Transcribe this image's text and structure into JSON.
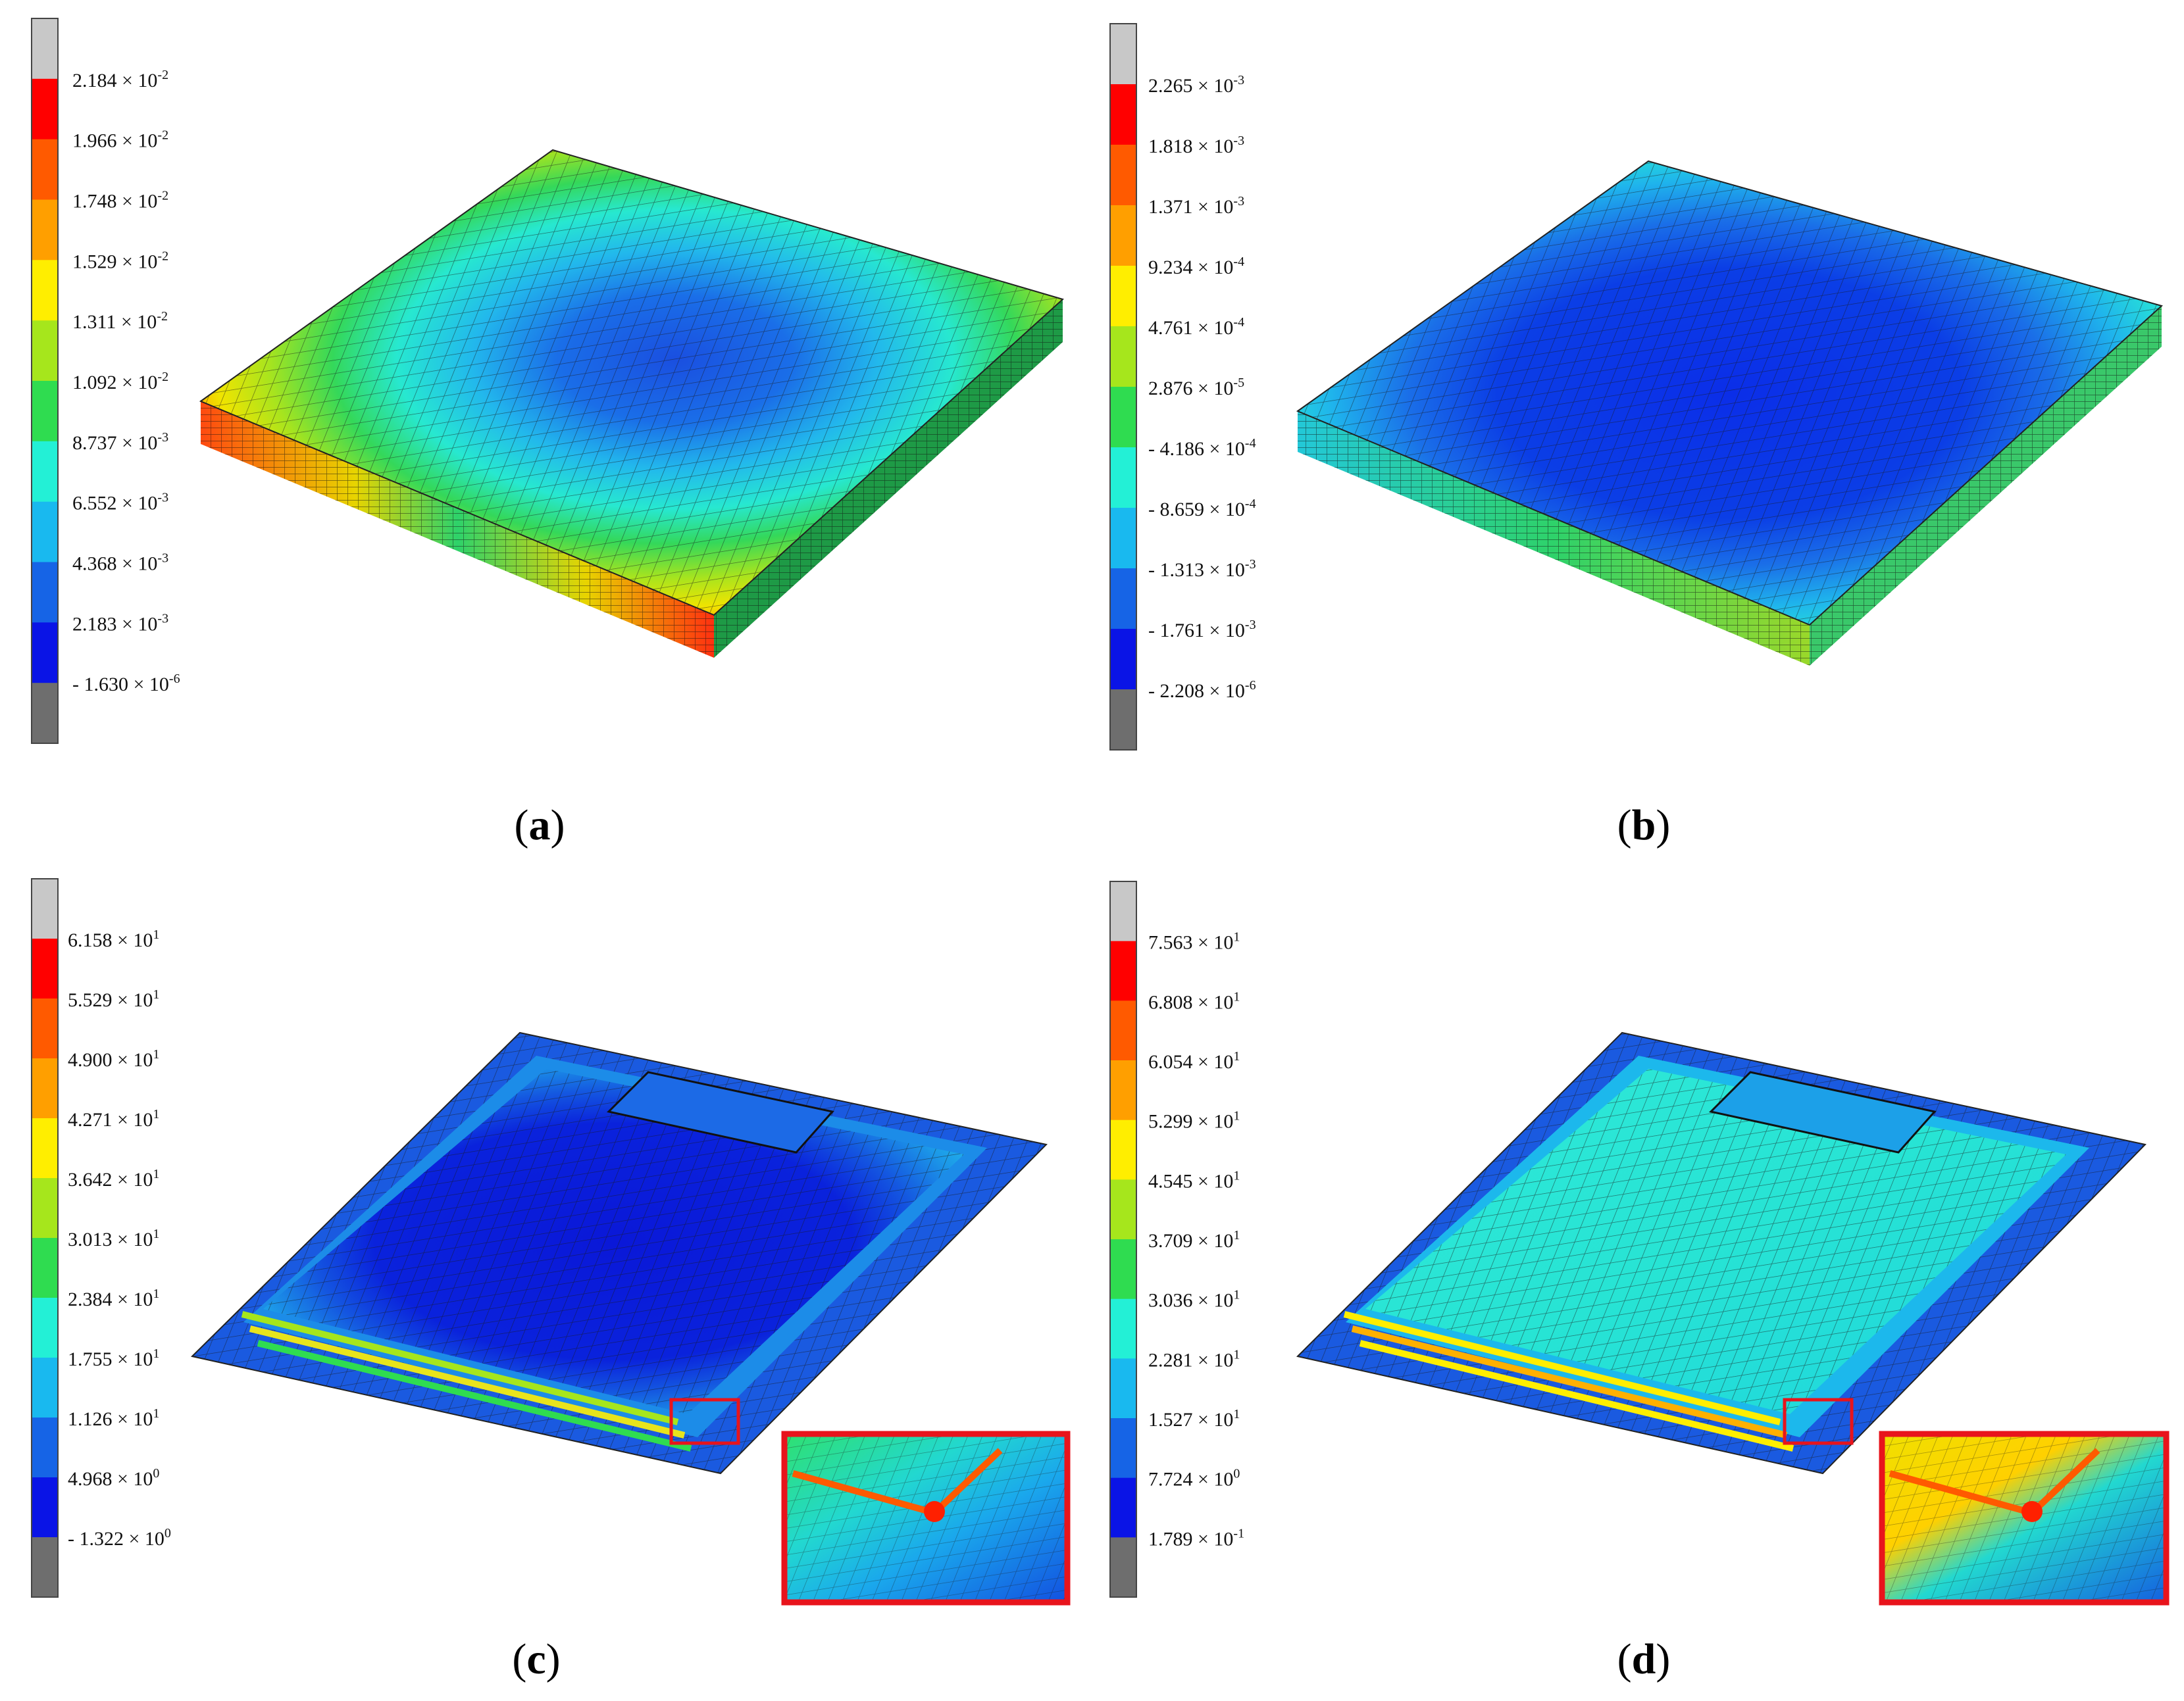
{
  "panels": [
    {
      "id": "a",
      "caption": "(a)",
      "letter": "a",
      "legend_labels": [
        {
          "mantissa": "2.184",
          "exp": "-2"
        },
        {
          "mantissa": "1.966",
          "exp": "-2"
        },
        {
          "mantissa": "1.748",
          "exp": "-2"
        },
        {
          "mantissa": "1.529",
          "exp": "-2"
        },
        {
          "mantissa": "1.311",
          "exp": "-2"
        },
        {
          "mantissa": "1.092",
          "exp": "-2"
        },
        {
          "mantissa": "8.737",
          "exp": "-3"
        },
        {
          "mantissa": "6.552",
          "exp": "-3"
        },
        {
          "mantissa": "4.368",
          "exp": "-3"
        },
        {
          "mantissa": "2.183",
          "exp": "-3"
        },
        {
          "mantissa": "- 1.630",
          "exp": "-6"
        }
      ],
      "inset": false
    },
    {
      "id": "b",
      "caption": "(b)",
      "letter": "b",
      "legend_labels": [
        {
          "mantissa": "2.265",
          "exp": "-3"
        },
        {
          "mantissa": "1.818",
          "exp": "-3"
        },
        {
          "mantissa": "1.371",
          "exp": "-3"
        },
        {
          "mantissa": "9.234",
          "exp": "-4"
        },
        {
          "mantissa": "4.761",
          "exp": "-4"
        },
        {
          "mantissa": "2.876",
          "exp": "-5"
        },
        {
          "mantissa": "- 4.186",
          "exp": "-4"
        },
        {
          "mantissa": "- 8.659",
          "exp": "-4"
        },
        {
          "mantissa": "- 1.313",
          "exp": "-3"
        },
        {
          "mantissa": "- 1.761",
          "exp": "-3"
        },
        {
          "mantissa": "- 2.208",
          "exp": "-6"
        }
      ],
      "inset": false
    },
    {
      "id": "c",
      "caption": "(c)",
      "letter": "c",
      "legend_labels": [
        {
          "mantissa": "6.158",
          "exp": "1"
        },
        {
          "mantissa": "5.529",
          "exp": "1"
        },
        {
          "mantissa": "4.900",
          "exp": "1"
        },
        {
          "mantissa": "4.271",
          "exp": "1"
        },
        {
          "mantissa": "3.642",
          "exp": "1"
        },
        {
          "mantissa": "3.013",
          "exp": "1"
        },
        {
          "mantissa": "2.384",
          "exp": "1"
        },
        {
          "mantissa": "1.755",
          "exp": "1"
        },
        {
          "mantissa": "1.126",
          "exp": "1"
        },
        {
          "mantissa": "4.968",
          "exp": "0"
        },
        {
          "mantissa": "- 1.322",
          "exp": "0"
        }
      ],
      "inset": true
    },
    {
      "id": "d",
      "caption": "(d)",
      "letter": "d",
      "legend_labels": [
        {
          "mantissa": "7.563",
          "exp": "1"
        },
        {
          "mantissa": "6.808",
          "exp": "1"
        },
        {
          "mantissa": "6.054",
          "exp": "1"
        },
        {
          "mantissa": "5.299",
          "exp": "1"
        },
        {
          "mantissa": "4.545",
          "exp": "1"
        },
        {
          "mantissa": "3.709",
          "exp": "1"
        },
        {
          "mantissa": "3.036",
          "exp": "1"
        },
        {
          "mantissa": "2.281",
          "exp": "1"
        },
        {
          "mantissa": "1.527",
          "exp": "1"
        },
        {
          "mantissa": "7.724",
          "exp": "0"
        },
        {
          "mantissa": "1.789",
          "exp": "-1"
        }
      ],
      "inset": true
    }
  ],
  "colormap": [
    "#c8c8c8",
    "#ff0000",
    "#ff5a00",
    "#ff9f00",
    "#ffee00",
    "#a6e61c",
    "#2fdc50",
    "#23f0d6",
    "#19b9ef",
    "#1664e6",
    "#0a14e6",
    "#6e6e6e"
  ],
  "colors": {
    "inset_border": "#e8141c",
    "mesh_line": "#1a1a1a"
  }
}
